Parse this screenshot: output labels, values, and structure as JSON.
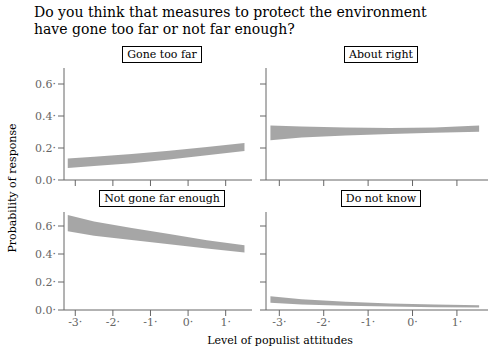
{
  "title": "Do you think that measures to protect the environment\nhave gone too far or not far enough?",
  "xlabel": "Level of populist attitudes",
  "ylabel": "Probability of response",
  "chart_data": [
    {
      "type": "band",
      "title": "Gone too far",
      "x": [
        -3.2,
        -2.5,
        -1.5,
        -0.5,
        0.5,
        1.5
      ],
      "lower": [
        0.075,
        0.088,
        0.105,
        0.128,
        0.155,
        0.182
      ],
      "upper": [
        0.135,
        0.145,
        0.163,
        0.183,
        0.206,
        0.232
      ],
      "color": "#888888",
      "xlim": [
        -3.3,
        1.7
      ],
      "ylim": [
        0.0,
        0.7
      ],
      "xticks": [
        {
          "value": -3,
          "label": "-3·"
        },
        {
          "value": -2,
          "label": "-2·"
        },
        {
          "value": -1,
          "label": "-1·"
        },
        {
          "value": 0,
          "label": "0·"
        },
        {
          "value": 1,
          "label": "1·"
        }
      ],
      "yticks": [
        {
          "value": 0.0,
          "label": "0.0·"
        },
        {
          "value": 0.2,
          "label": "0.2·"
        },
        {
          "value": 0.4,
          "label": "0.4·"
        },
        {
          "value": 0.6,
          "label": "0.6·"
        }
      ],
      "tick_labels": "y",
      "grid": false
    },
    {
      "type": "band",
      "title": "About right",
      "x": [
        -3.2,
        -2.5,
        -1.5,
        -0.5,
        0.5,
        1.5
      ],
      "lower": [
        0.248,
        0.265,
        0.278,
        0.288,
        0.295,
        0.302
      ],
      "upper": [
        0.34,
        0.335,
        0.328,
        0.325,
        0.328,
        0.34
      ],
      "color": "#888888",
      "xlim": [
        -3.3,
        1.7
      ],
      "ylim": [
        0.0,
        0.7
      ],
      "xticks": [
        {
          "value": -3,
          "label": "-3·"
        },
        {
          "value": -2,
          "label": "-2·"
        },
        {
          "value": -1,
          "label": "-1·"
        },
        {
          "value": 0,
          "label": "0·"
        },
        {
          "value": 1,
          "label": "1·"
        }
      ],
      "yticks": [
        {
          "value": 0.0,
          "label": "0.0·"
        },
        {
          "value": 0.2,
          "label": "0.2·"
        },
        {
          "value": 0.4,
          "label": "0.4·"
        },
        {
          "value": 0.6,
          "label": "0.6·"
        }
      ],
      "tick_labels": false,
      "grid": false
    },
    {
      "type": "band",
      "title": "Not gone far enough",
      "x": [
        -3.2,
        -2.5,
        -1.5,
        -0.5,
        0.5,
        1.5
      ],
      "lower": [
        0.562,
        0.53,
        0.5,
        0.47,
        0.44,
        0.41
      ],
      "upper": [
        0.678,
        0.632,
        0.585,
        0.543,
        0.498,
        0.462
      ],
      "color": "#888888",
      "xlim": [
        -3.3,
        1.7
      ],
      "ylim": [
        0.0,
        0.7
      ],
      "xticks": [
        {
          "value": -3,
          "label": "-3·"
        },
        {
          "value": -2,
          "label": "-2·"
        },
        {
          "value": -1,
          "label": "-1·"
        },
        {
          "value": 0,
          "label": "0·"
        },
        {
          "value": 1,
          "label": "1·"
        }
      ],
      "yticks": [
        {
          "value": 0.0,
          "label": "0.0·"
        },
        {
          "value": 0.2,
          "label": "0.2·"
        },
        {
          "value": 0.4,
          "label": "0.4·"
        },
        {
          "value": 0.6,
          "label": "0.6·"
        }
      ],
      "tick_labels": true,
      "grid": false
    },
    {
      "type": "band",
      "title": "Do not know",
      "x": [
        -3.2,
        -2.5,
        -1.5,
        -0.5,
        0.5,
        1.5
      ],
      "lower": [
        0.052,
        0.04,
        0.031,
        0.025,
        0.02,
        0.017
      ],
      "upper": [
        0.098,
        0.076,
        0.059,
        0.047,
        0.039,
        0.034
      ],
      "color": "#888888",
      "xlim": [
        -3.3,
        1.7
      ],
      "ylim": [
        0.0,
        0.7
      ],
      "xticks": [
        {
          "value": -3,
          "label": "-3·"
        },
        {
          "value": -2,
          "label": "-2·"
        },
        {
          "value": -1,
          "label": "-1·"
        },
        {
          "value": 0,
          "label": "0·"
        },
        {
          "value": 1,
          "label": "1·"
        }
      ],
      "yticks": [
        {
          "value": 0.0,
          "label": "0.0·"
        },
        {
          "value": 0.2,
          "label": "0.2·"
        },
        {
          "value": 0.4,
          "label": "0.4·"
        },
        {
          "value": 0.6,
          "label": "0.6·"
        }
      ],
      "tick_labels": "x",
      "grid": false
    }
  ]
}
